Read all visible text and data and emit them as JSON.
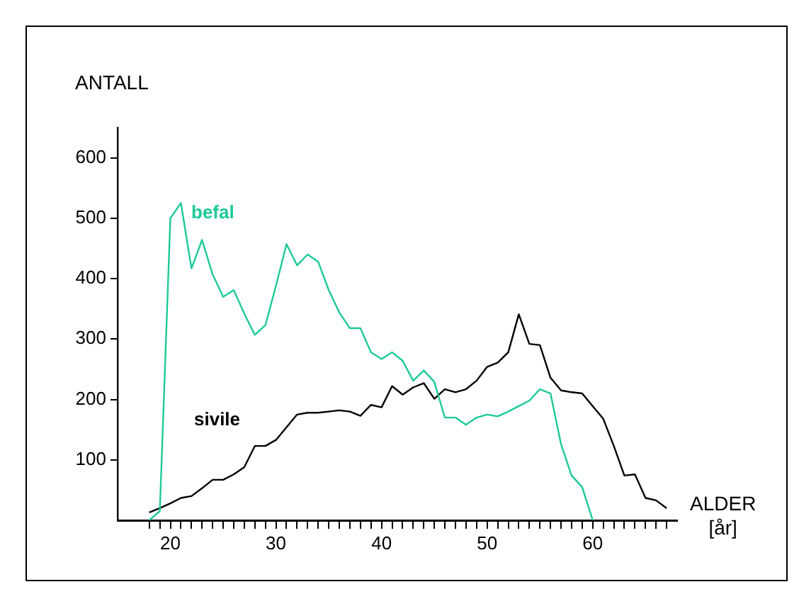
{
  "chart_data": {
    "type": "line",
    "ylabel": "ANTALL",
    "xlabel": "ALDER [år]",
    "x": [
      18,
      19,
      20,
      21,
      22,
      23,
      24,
      25,
      26,
      27,
      28,
      29,
      30,
      31,
      32,
      33,
      34,
      35,
      36,
      37,
      38,
      39,
      40,
      41,
      42,
      43,
      44,
      45,
      46,
      47,
      48,
      49,
      50,
      51,
      52,
      53,
      54,
      55,
      56,
      57,
      58,
      59,
      60,
      61,
      62,
      63,
      64,
      65,
      66,
      67
    ],
    "series": [
      {
        "name": "befal",
        "color": "#1ec99a",
        "x": [
          18,
          19,
          20,
          21,
          22,
          23,
          24,
          25,
          26,
          27,
          28,
          29,
          30,
          31,
          32,
          33,
          34,
          35,
          36,
          37,
          38,
          39,
          40,
          41,
          42,
          43,
          44,
          45,
          46,
          47,
          48,
          49,
          50,
          51,
          52,
          53,
          54,
          55,
          56,
          57,
          58,
          59,
          60
        ],
        "values": [
          0,
          15,
          500,
          525,
          417,
          464,
          407,
          370,
          381,
          342,
          307,
          323,
          388,
          457,
          422,
          440,
          428,
          381,
          344,
          318,
          318,
          278,
          267,
          278,
          264,
          231,
          248,
          229,
          170,
          170,
          158,
          170,
          175,
          172,
          180,
          189,
          198,
          217,
          210,
          126,
          74,
          55,
          0
        ]
      },
      {
        "name": "sivile",
        "color": "#000000",
        "values": [
          13,
          20,
          28,
          37,
          40,
          53,
          67,
          67,
          76,
          88,
          123,
          123,
          133,
          154,
          175,
          178,
          178,
          180,
          182,
          180,
          173,
          191,
          187,
          222,
          208,
          220,
          227,
          201,
          217,
          212,
          217,
          231,
          254,
          261,
          278,
          341,
          292,
          290,
          236,
          215,
          212,
          210,
          189,
          168,
          123,
          74,
          76,
          37,
          33,
          20
        ]
      }
    ],
    "xlim": [
      15,
      68
    ],
    "ylim": [
      0,
      650
    ],
    "xticks": [
      {
        "value": 18,
        "label": null
      },
      {
        "value": 19,
        "label": null
      },
      20,
      {
        "value": 21,
        "label": null
      },
      {
        "value": 22,
        "label": null
      },
      {
        "value": 23,
        "label": null
      },
      {
        "value": 24,
        "label": null
      },
      {
        "value": 25,
        "label": null
      },
      {
        "value": 26,
        "label": null
      },
      {
        "value": 27,
        "label": null
      },
      {
        "value": 28,
        "label": null
      },
      {
        "value": 29,
        "label": null
      },
      30,
      {
        "value": 31,
        "label": null
      },
      {
        "value": 32,
        "label": null
      },
      {
        "value": 33,
        "label": null
      },
      {
        "value": 34,
        "label": null
      },
      {
        "value": 35,
        "label": null
      },
      {
        "value": 36,
        "label": null
      },
      {
        "value": 37,
        "label": null
      },
      {
        "value": 38,
        "label": null
      },
      {
        "value": 39,
        "label": null
      },
      40,
      {
        "value": 41,
        "label": null
      },
      {
        "value": 42,
        "label": null
      },
      {
        "value": 43,
        "label": null
      },
      {
        "value": 44,
        "label": null
      },
      {
        "value": 45,
        "label": null
      },
      {
        "value": 46,
        "label": null
      },
      {
        "value": 47,
        "label": null
      },
      {
        "value": 48,
        "label": null
      },
      {
        "value": 49,
        "label": null
      },
      50,
      {
        "value": 51,
        "label": null
      },
      {
        "value": 52,
        "label": null
      },
      {
        "value": 53,
        "label": null
      },
      {
        "value": 54,
        "label": null
      },
      {
        "value": 55,
        "label": null
      },
      {
        "value": 56,
        "label": null
      },
      {
        "value": 57,
        "label": null
      },
      {
        "value": 58,
        "label": null
      },
      {
        "value": 59,
        "label": null
      },
      60,
      {
        "value": 61,
        "label": null
      },
      {
        "value": 62,
        "label": null
      },
      {
        "value": 63,
        "label": null
      },
      {
        "value": 64,
        "label": null
      },
      {
        "value": 65,
        "label": null
      },
      {
        "value": 66,
        "label": null
      },
      {
        "value": 67,
        "label": null
      }
    ],
    "yticks": [
      100,
      200,
      300,
      400,
      500,
      600
    ],
    "grid": false,
    "legend": false,
    "marker": "none",
    "line_style": "solid"
  }
}
